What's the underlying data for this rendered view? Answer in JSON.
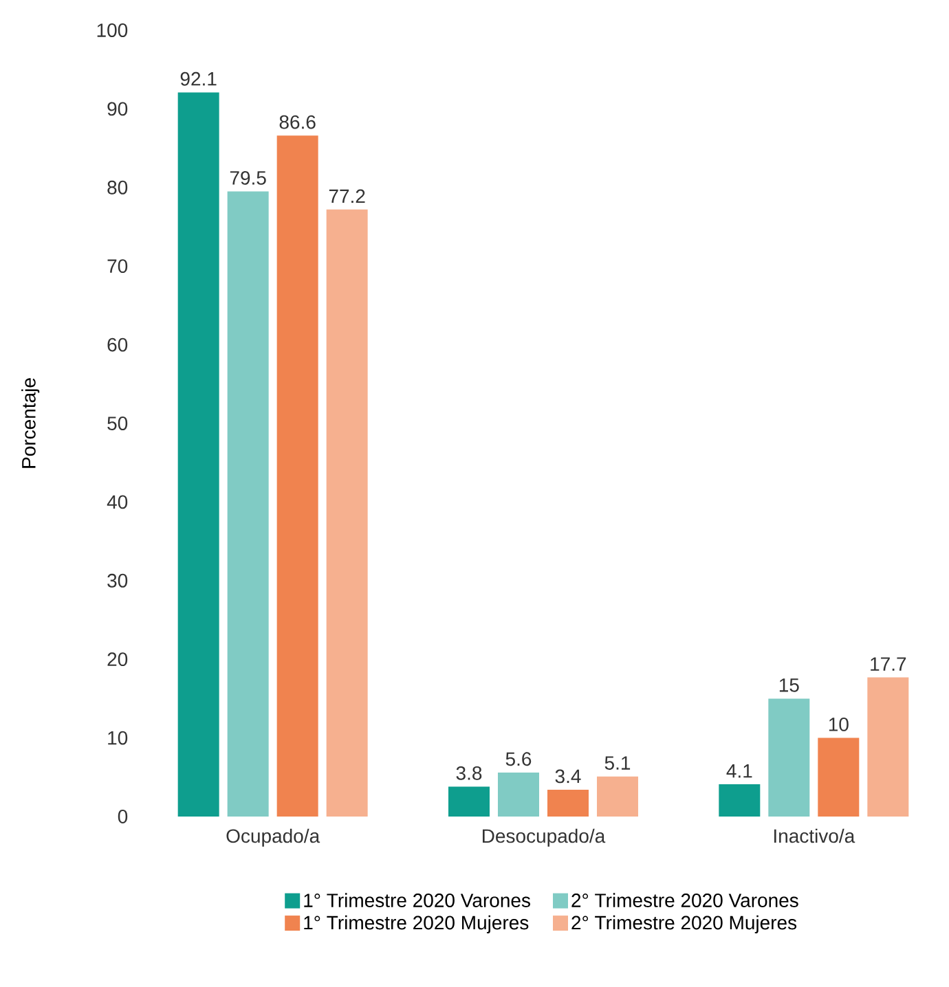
{
  "chart_data": {
    "type": "bar",
    "ylabel": "Porcentaje",
    "categories": [
      "Ocupado/a",
      "Desocupado/a",
      "Inactivo/a"
    ],
    "series": [
      {
        "name": "1° Trimestre 2020 Varones",
        "color": "#0e9e8e",
        "values": [
          92.1,
          3.8,
          4.1
        ]
      },
      {
        "name": "2° Trimestre 2020 Varones",
        "color": "#80cbc4",
        "values": [
          79.5,
          5.6,
          15
        ]
      },
      {
        "name": "1° Trimestre 2020 Mujeres",
        "color": "#f0834f",
        "values": [
          86.6,
          3.4,
          10
        ]
      },
      {
        "name": "2° Trimestre 2020 Mujeres",
        "color": "#f6b08f",
        "values": [
          77.2,
          5.1,
          17.7
        ]
      }
    ],
    "ylim": [
      0,
      100
    ],
    "yticks": [
      0,
      10,
      20,
      30,
      40,
      50,
      60,
      70,
      80,
      90,
      100
    ],
    "data_labels": true,
    "legend": "bottom",
    "grid": false
  }
}
